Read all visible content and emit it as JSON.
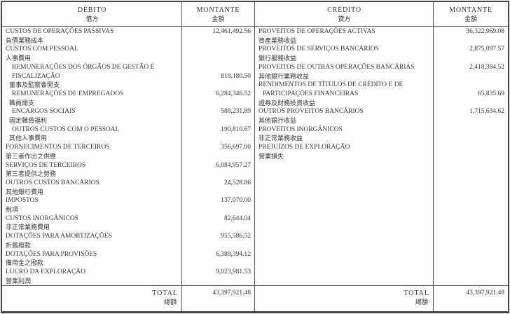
{
  "table": {
    "debit": {
      "header": {
        "title_pt": "DÉBITO",
        "title_cn": "借方",
        "amount_pt": "MONTANTE",
        "amount_cn": "金額"
      },
      "rows": [
        {
          "pt": [
            "CUSTOS DE OPERAÇÕES PASSIVAS"
          ],
          "cn": "負債業務成本",
          "amount": "12,461,492.56"
        },
        {
          "pt": [
            "CUSTOS COM PESSOAL"
          ],
          "cn": "人事費用",
          "amount": ""
        },
        {
          "pt": [
            "REMUNERAÇÕES DOS ÓRGÃOS DE GESTÃO E",
            "FISCALIZAÇÃO"
          ],
          "cn": "董事及監察會開支",
          "amount": "818,180.50",
          "indent": true,
          "amount_line": 2
        },
        {
          "pt": [
            "REMUNERAÇÕES DE EMPREGADOS"
          ],
          "cn": "職員開支",
          "amount": "6,284,346.52",
          "indent": true
        },
        {
          "pt": [
            "ENCARGOS SOCIAIS"
          ],
          "cn": "固定職員福利",
          "amount": "588,231.89",
          "indent": true
        },
        {
          "pt": [
            "OUTROS CUSTOS COM O PESSOAL"
          ],
          "cn": "其他人事費用",
          "amount": "190,810.67",
          "indent": true
        },
        {
          "pt": [
            "FORNECIMENTOS DE TERCEIROS"
          ],
          "cn": "第三者作出之供應",
          "amount": "356,697.00"
        },
        {
          "pt": [
            "SERVIÇOS DE TERCEIROS"
          ],
          "cn": "第三者提供之勞務",
          "amount": "6,084,957.27"
        },
        {
          "pt": [
            "OUTROS CUSTOS BANCÁRIOS"
          ],
          "cn": "其他銀行費用",
          "amount": "24,528.86"
        },
        {
          "pt": [
            "IMPOSTOS"
          ],
          "cn": "稅項",
          "amount": "137,070.00"
        },
        {
          "pt": [
            "CUSTOS INORGÂNICOS"
          ],
          "cn": "非正常業務費用",
          "amount": "82,644.04"
        },
        {
          "pt": [
            "DOTAÇÕES PARA AMORTIZAÇÕES"
          ],
          "cn": "折舊撥款",
          "amount": "955,586.52"
        },
        {
          "pt": [
            "DOTAÇÕES PARA PROVISÕES"
          ],
          "cn": "備用金之撥款",
          "amount": "6,389,394.12"
        },
        {
          "pt": [
            "LUCRO DA EXPLORAÇÃO"
          ],
          "cn": "營業利潤",
          "amount": "9,023,981.53"
        }
      ],
      "total": {
        "label_pt": "TOTAL",
        "label_cn": "總額",
        "amount": "43,397,921.48"
      }
    },
    "credit": {
      "header": {
        "title_pt": "CRÉDITO",
        "title_cn": "貸方",
        "amount_pt": "MONTANTE",
        "amount_cn": "金額"
      },
      "rows": [
        {
          "pt": [
            "PROVEITOS DE OPERAÇÕES ACTIVAS"
          ],
          "cn": "資產業務收益",
          "amount": "36,322,969.08"
        },
        {
          "pt": [
            "PROVEITOS DE SERVIÇOS BANCÁRIOS"
          ],
          "cn": "銀行服務收益",
          "amount": "2,875,097.57"
        },
        {
          "pt": [
            "PROVEITOS DE OUTRAS OPERAÇÕES BANCÁRIAS"
          ],
          "cn": "其他銀行業務收益",
          "amount": "2,418,384.52"
        },
        {
          "pt": [
            "RENDIMENTOS DE TÍTULOS DE CRÉDITO E DE",
            "PARTICIPAÇÕES FINANCEIRAS"
          ],
          "cn": "證券及財務投資收益",
          "amount": "65,835.69",
          "hang": true,
          "amount_line": 2
        },
        {
          "pt": [
            "OUTROS PROVEITOS BANCÁRIOS"
          ],
          "cn": "其他銀行收益",
          "amount": "1,715,634.62"
        },
        {
          "pt": [
            "PROVEITOS INORGÂNICOS"
          ],
          "cn": "非正常業務收益",
          "amount": ""
        },
        {
          "pt": [
            "PREJUÍZOS DE EXPLORAÇÃO"
          ],
          "cn": "營業損失",
          "amount": ""
        }
      ],
      "total": {
        "label_pt": "TOTAL",
        "label_cn": "總額",
        "amount": "43,397,921.48"
      }
    }
  }
}
